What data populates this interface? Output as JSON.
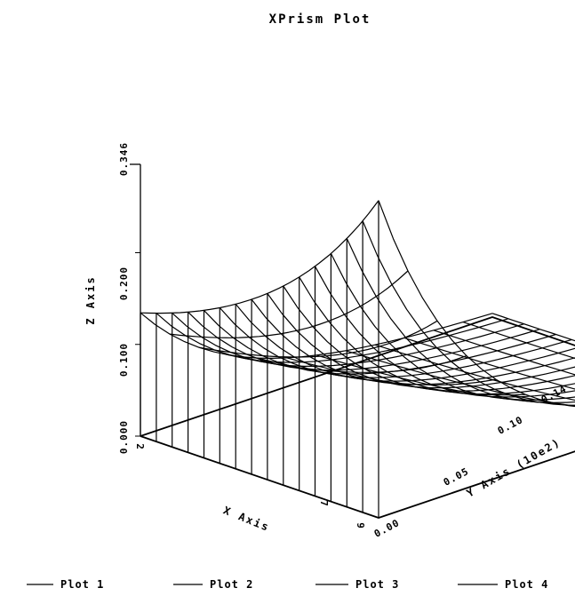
{
  "chart_data": {
    "type": "surface3d",
    "title": "XPrism Plot",
    "xlabel": "X Axis",
    "ylabel": "Y Axis (10e2)",
    "zlabel": "Z Axis",
    "x_ticks": [
      "2",
      "7",
      "9"
    ],
    "y_ticks": [
      "0.00",
      "0.05",
      "0.10",
      "0.14"
    ],
    "z_ticks": [
      "0.000",
      "0.100",
      "0.200",
      "0.346"
    ],
    "xlim": [
      2,
      9
    ],
    "ylim": [
      0,
      0.14
    ],
    "zlim": [
      0,
      0.346
    ],
    "peak": {
      "x": 9,
      "y": 0,
      "z": 0.346
    },
    "grid_x_lines": 16,
    "grid_y_lines": 13,
    "legend": [
      "Plot 1",
      "Plot 2",
      "Plot 3",
      "Plot 4"
    ],
    "legend_position": "bottom",
    "colors": {
      "line": "#000000",
      "background": "#ffffff"
    }
  }
}
